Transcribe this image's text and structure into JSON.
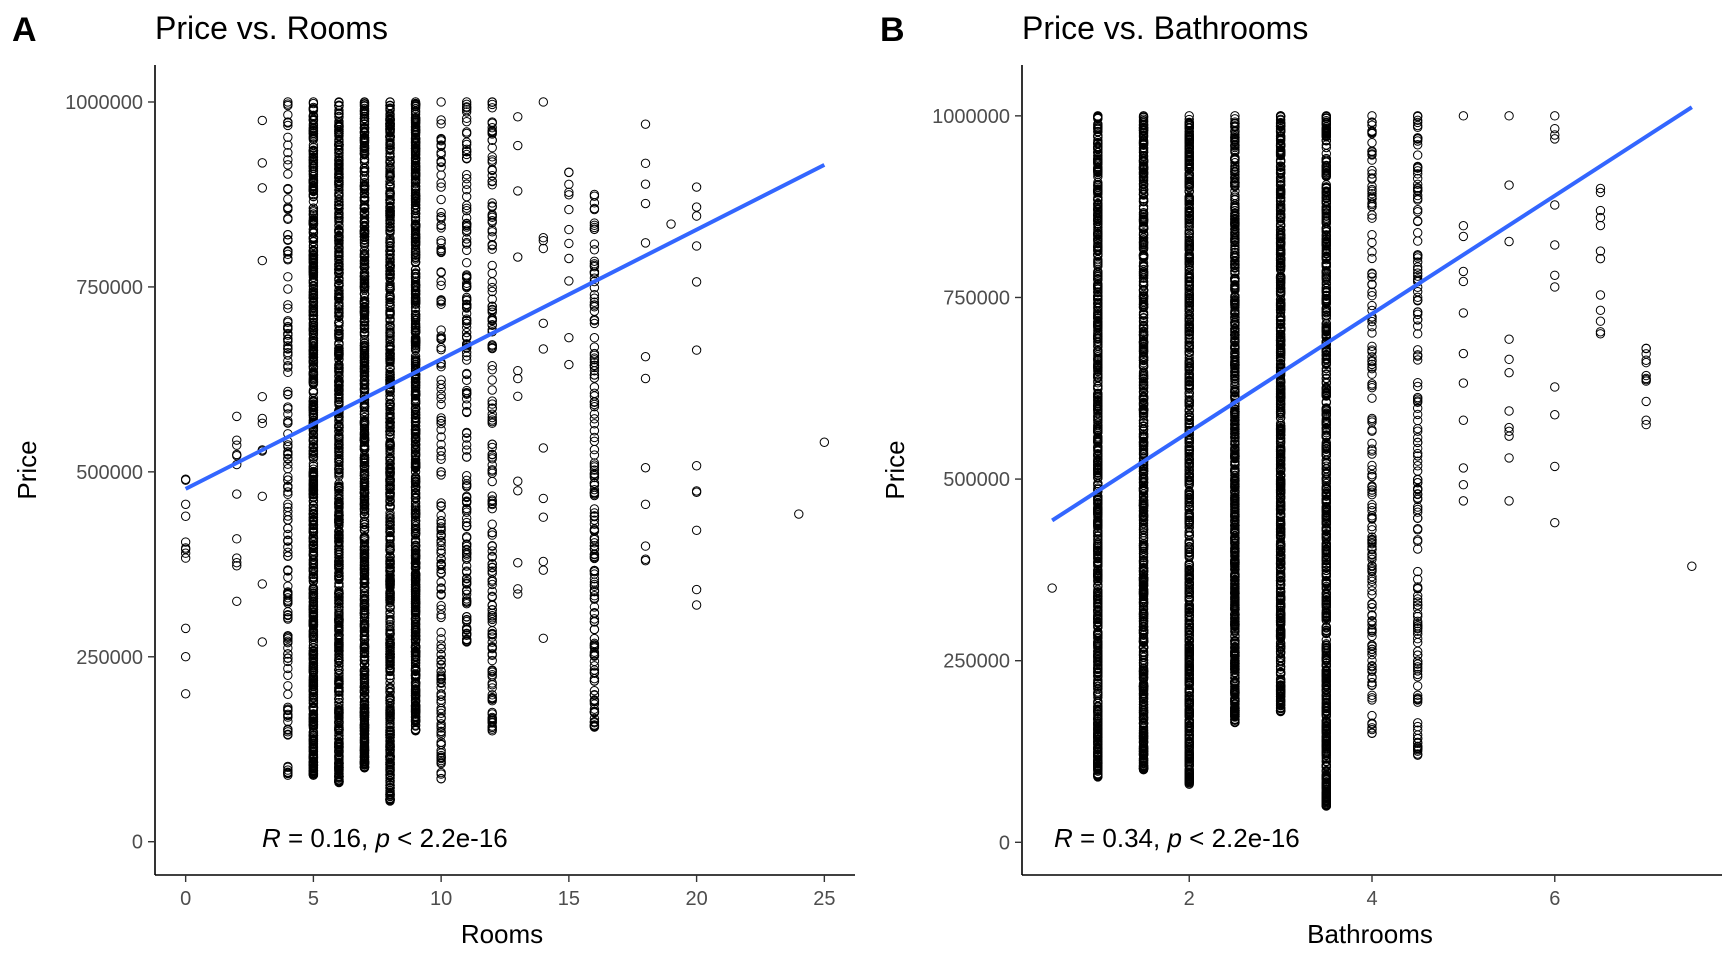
{
  "figure": {
    "colors": {
      "point": "#000000",
      "fit_line": "#3366FF",
      "background": "#FFFFFF"
    }
  },
  "chart_data": [
    {
      "panel_tag": "A",
      "type": "scatter",
      "title": "Price vs. Rooms",
      "xlabel": "Rooms",
      "ylabel": "Price",
      "xlim": [
        -1.2,
        26.2
      ],
      "ylim": [
        -45000,
        1050000
      ],
      "x_ticks": [
        0,
        5,
        10,
        15,
        20,
        25
      ],
      "x_tick_labels": [
        "0",
        "5",
        "10",
        "15",
        "20",
        "25"
      ],
      "y_ticks": [
        0,
        250000,
        500000,
        750000,
        1000000
      ],
      "y_tick_labels": [
        "0",
        "250000",
        "500000",
        "750000",
        "1000000"
      ],
      "grid": false,
      "fit": {
        "method": "linear",
        "x": [
          0,
          25
        ],
        "y": [
          477000,
          915000
        ]
      },
      "annotation": {
        "r_symbol": "R",
        "r_text": " = 0.16, ",
        "p_symbol": "p",
        "p_text": " < 2.2e-16"
      },
      "columns": [
        {
          "x": 0,
          "min": 200000,
          "max": 490000,
          "density": "sparse"
        },
        {
          "x": 2,
          "min": 325000,
          "max": 575000,
          "density": "sparse"
        },
        {
          "x": 3,
          "min": 270000,
          "max": 975000,
          "density": "sparse"
        },
        {
          "x": 4,
          "min": 90000,
          "max": 1000000,
          "density": "medium"
        },
        {
          "x": 5,
          "min": 90000,
          "max": 1000000,
          "density": "dense"
        },
        {
          "x": 6,
          "min": 80000,
          "max": 1000000,
          "density": "dense"
        },
        {
          "x": 7,
          "min": 100000,
          "max": 1000000,
          "density": "dense"
        },
        {
          "x": 8,
          "min": 55000,
          "max": 1000000,
          "density": "dense"
        },
        {
          "x": 9,
          "min": 150000,
          "max": 1000000,
          "density": "dense"
        },
        {
          "x": 10,
          "min": 85000,
          "max": 1000000,
          "density": "medium"
        },
        {
          "x": 11,
          "min": 270000,
          "max": 1000000,
          "density": "medium"
        },
        {
          "x": 12,
          "min": 150000,
          "max": 1000000,
          "density": "medium"
        },
        {
          "x": 13,
          "min": 335000,
          "max": 980000,
          "density": "sparse"
        },
        {
          "x": 14,
          "min": 275000,
          "max": 1000000,
          "density": "sparse"
        },
        {
          "x": 15,
          "min": 645000,
          "max": 905000,
          "density": "sparse"
        },
        {
          "x": 16,
          "min": 155000,
          "max": 875000,
          "density": "medium"
        },
        {
          "x": 18,
          "min": 380000,
          "max": 970000,
          "density": "sparse"
        },
        {
          "x": 19,
          "min": 835000,
          "max": 835000,
          "density": "sparse"
        },
        {
          "x": 20,
          "min": 320000,
          "max": 885000,
          "density": "sparse"
        },
        {
          "x": 24,
          "min": 443000,
          "max": 443000,
          "density": "sparse"
        },
        {
          "x": 25,
          "min": 540000,
          "max": 540000,
          "density": "sparse"
        }
      ]
    },
    {
      "panel_tag": "B",
      "type": "scatter",
      "title": "Price vs. Bathrooms",
      "xlabel": "Bathrooms",
      "ylabel": "Price",
      "xlim": [
        0.17,
        7.83
      ],
      "ylim": [
        -45000,
        1070000
      ],
      "x_ticks": [
        2,
        4,
        6
      ],
      "x_tick_labels": [
        "2",
        "4",
        "6"
      ],
      "y_ticks": [
        0,
        250000,
        500000,
        750000,
        1000000
      ],
      "y_tick_labels": [
        "0",
        "250000",
        "500000",
        "750000",
        "1000000"
      ],
      "grid": false,
      "fit": {
        "method": "linear",
        "x": [
          0.5,
          7.5
        ],
        "y": [
          443000,
          1012000
        ]
      },
      "annotation": {
        "r_symbol": "R",
        "r_text": " = 0.34, ",
        "p_symbol": "p",
        "p_text": " < 2.2e-16"
      },
      "columns": [
        {
          "x": 0.5,
          "min": 350000,
          "max": 350000,
          "density": "sparse"
        },
        {
          "x": 1,
          "min": 90000,
          "max": 1000000,
          "density": "dense"
        },
        {
          "x": 1.5,
          "min": 100000,
          "max": 1000000,
          "density": "dense"
        },
        {
          "x": 2,
          "min": 80000,
          "max": 1000000,
          "density": "dense"
        },
        {
          "x": 2.5,
          "min": 165000,
          "max": 1000000,
          "density": "dense"
        },
        {
          "x": 3,
          "min": 180000,
          "max": 1000000,
          "density": "dense"
        },
        {
          "x": 3.5,
          "min": 50000,
          "max": 1000000,
          "density": "dense"
        },
        {
          "x": 4,
          "min": 150000,
          "max": 1000000,
          "density": "medium"
        },
        {
          "x": 4.5,
          "min": 120000,
          "max": 1000000,
          "density": "medium"
        },
        {
          "x": 5,
          "min": 470000,
          "max": 1000000,
          "density": "sparse"
        },
        {
          "x": 5.5,
          "min": 470000,
          "max": 1000000,
          "density": "sparse"
        },
        {
          "x": 6,
          "min": 440000,
          "max": 1000000,
          "density": "sparse"
        },
        {
          "x": 6.5,
          "min": 700000,
          "max": 900000,
          "density": "sparse"
        },
        {
          "x": 7,
          "min": 575000,
          "max": 680000,
          "density": "sparse"
        },
        {
          "x": 7.5,
          "min": 380000,
          "max": 380000,
          "density": "sparse"
        }
      ]
    }
  ]
}
